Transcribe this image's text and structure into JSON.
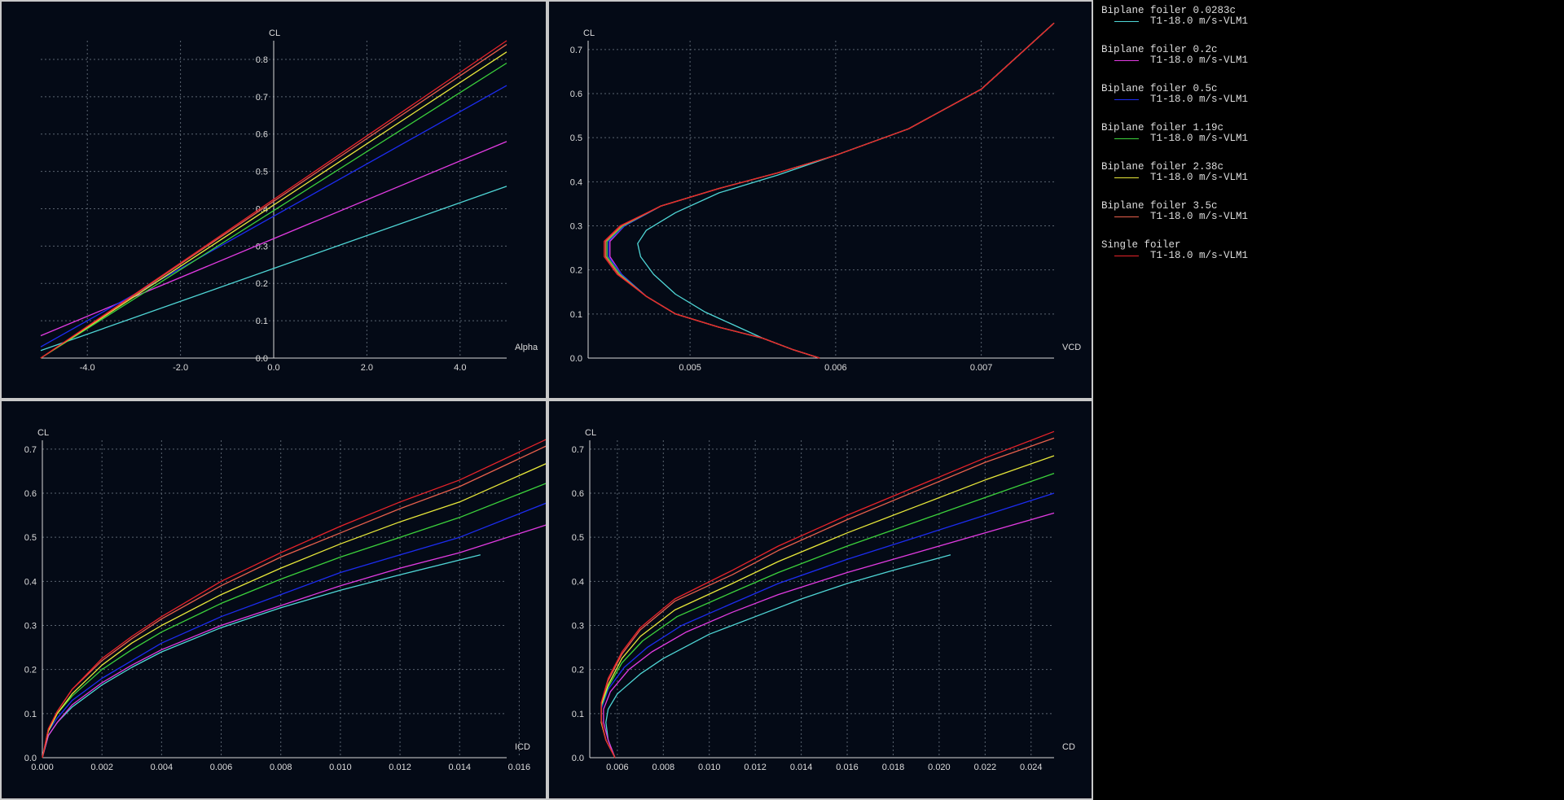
{
  "colors": {
    "background": "#040a16",
    "grid": "#5a6470",
    "axis": "#d8d8d8",
    "text": "#dcdcdc"
  },
  "legend": [
    {
      "label": "Biplane foiler 0.0283c",
      "run": "T1-18.0 m/s-VLM1",
      "color": "#4fd6d6"
    },
    {
      "label": "Biplane foiler 0.2c",
      "run": "T1-18.0 m/s-VLM1",
      "color": "#e23be2"
    },
    {
      "label": "Biplane foiler 0.5c",
      "run": "T1-18.0 m/s-VLM1",
      "color": "#1c2cf0"
    },
    {
      "label": "Biplane foiler 1.19c",
      "run": "T1-18.0 m/s-VLM1",
      "color": "#3cd23c"
    },
    {
      "label": "Biplane foiler 2.38c",
      "run": "T1-18.0 m/s-VLM1",
      "color": "#e8e83a"
    },
    {
      "label": "Biplane foiler 3.5c",
      "run": "T1-18.0 m/s-VLM1",
      "color": "#e8604c"
    },
    {
      "label": "Single foiler",
      "run": "T1-18.0 m/s-VLM1",
      "color": "#e8232a"
    }
  ],
  "chart_data": [
    {
      "type": "line",
      "xlabel": "Alpha",
      "ylabel": "CL",
      "xlim": [
        -5,
        5
      ],
      "ylim": [
        0,
        0.85
      ],
      "xticks": [
        -4.0,
        -2.0,
        0.0,
        2.0,
        4.0
      ],
      "xtick_labels": [
        "-4.0",
        "-2.0",
        "0.0",
        "2.0",
        "4.0"
      ],
      "yticks": [
        0.0,
        0.1,
        0.2,
        0.3,
        0.4,
        0.5,
        0.6,
        0.7,
        0.8
      ],
      "ytick_labels": [
        "0.0",
        "0.1",
        "0.2",
        "0.3",
        "0.4",
        "0.5",
        "0.6",
        "0.7",
        "0.8"
      ],
      "y_axis_at_x": 0,
      "grid": true,
      "series": [
        {
          "name": "Biplane foiler 0.0283c",
          "x": [
            -5,
            5
          ],
          "y": [
            0.02,
            0.46
          ]
        },
        {
          "name": "Biplane foiler 0.2c",
          "x": [
            -5,
            5
          ],
          "y": [
            0.06,
            0.58
          ]
        },
        {
          "name": "Biplane foiler 0.5c",
          "x": [
            -5,
            5
          ],
          "y": [
            0.03,
            0.73
          ]
        },
        {
          "name": "Biplane foiler 1.19c",
          "x": [
            -5,
            5
          ],
          "y": [
            0.0,
            0.79
          ]
        },
        {
          "name": "Biplane foiler 2.38c",
          "x": [
            -5,
            5
          ],
          "y": [
            0.0,
            0.82
          ]
        },
        {
          "name": "Biplane foiler 3.5c",
          "x": [
            -5,
            5
          ],
          "y": [
            0.0,
            0.84
          ]
        },
        {
          "name": "Single foiler",
          "x": [
            -5,
            5
          ],
          "y": [
            0.0,
            0.85
          ]
        }
      ]
    },
    {
      "type": "line",
      "xlabel": "VCD",
      "ylabel": "CL",
      "xlim": [
        0.0043,
        0.0075
      ],
      "ylim": [
        0,
        0.72
      ],
      "xticks": [
        0.005,
        0.006,
        0.007
      ],
      "xtick_labels": [
        "0.005",
        "0.006",
        "0.007"
      ],
      "yticks": [
        0.0,
        0.1,
        0.2,
        0.3,
        0.4,
        0.5,
        0.6,
        0.7
      ],
      "ytick_labels": [
        "0.0",
        "0.1",
        "0.2",
        "0.3",
        "0.4",
        "0.5",
        "0.6",
        "0.7"
      ],
      "grid": true,
      "series": [
        {
          "name": "Biplane foiler 0.0283c",
          "x": [
            0.00589,
            0.0057,
            0.0055,
            0.0053,
            0.0051,
            0.0049,
            0.00475,
            0.00466,
            0.00464,
            0.0047,
            0.0049,
            0.0052,
            0.0056,
            0.006,
            0.0065,
            0.007,
            0.0075
          ],
          "y": [
            0.0,
            0.02,
            0.045,
            0.075,
            0.105,
            0.145,
            0.19,
            0.23,
            0.26,
            0.29,
            0.33,
            0.375,
            0.415,
            0.46,
            0.52,
            0.61,
            0.76
          ]
        },
        {
          "name": "Biplane foiler 0.2c",
          "x": [
            0.00589,
            0.0057,
            0.0055,
            0.0052,
            0.0049,
            0.0047,
            0.00453,
            0.00445,
            0.00445,
            0.00455,
            0.0048,
            0.0052,
            0.0056,
            0.006,
            0.0065,
            0.007,
            0.0075
          ],
          "y": [
            0.0,
            0.02,
            0.045,
            0.07,
            0.1,
            0.14,
            0.19,
            0.23,
            0.265,
            0.3,
            0.345,
            0.385,
            0.42,
            0.46,
            0.52,
            0.61,
            0.76
          ]
        },
        {
          "name": "Biplane foiler 0.5c",
          "x": [
            0.00589,
            0.0057,
            0.0055,
            0.0052,
            0.0049,
            0.0047,
            0.00453,
            0.00444,
            0.00444,
            0.00455,
            0.0048,
            0.0052,
            0.0056,
            0.006,
            0.0065,
            0.007,
            0.0075
          ],
          "y": [
            0.0,
            0.02,
            0.045,
            0.07,
            0.1,
            0.14,
            0.19,
            0.23,
            0.265,
            0.3,
            0.345,
            0.385,
            0.42,
            0.46,
            0.52,
            0.61,
            0.76
          ]
        },
        {
          "name": "Biplane foiler 1.19c",
          "x": [
            0.00589,
            0.0057,
            0.0055,
            0.0052,
            0.0049,
            0.0047,
            0.00452,
            0.00443,
            0.00443,
            0.00454,
            0.0048,
            0.0052,
            0.0056,
            0.006,
            0.0065,
            0.007,
            0.0075
          ],
          "y": [
            0.0,
            0.02,
            0.045,
            0.07,
            0.1,
            0.14,
            0.19,
            0.23,
            0.265,
            0.3,
            0.345,
            0.385,
            0.42,
            0.46,
            0.52,
            0.61,
            0.76
          ]
        },
        {
          "name": "Biplane foiler 2.38c",
          "x": [
            0.00589,
            0.0057,
            0.0055,
            0.0052,
            0.0049,
            0.0047,
            0.00451,
            0.00442,
            0.00442,
            0.00453,
            0.0048,
            0.0052,
            0.0056,
            0.006,
            0.0065,
            0.007,
            0.0075
          ],
          "y": [
            0.0,
            0.02,
            0.045,
            0.07,
            0.1,
            0.14,
            0.19,
            0.23,
            0.265,
            0.3,
            0.345,
            0.385,
            0.42,
            0.46,
            0.52,
            0.61,
            0.76
          ]
        },
        {
          "name": "Biplane foiler 3.5c",
          "x": [
            0.00589,
            0.0057,
            0.0055,
            0.0052,
            0.0049,
            0.0047,
            0.00451,
            0.00442,
            0.00442,
            0.00453,
            0.0048,
            0.0052,
            0.0056,
            0.006,
            0.0065,
            0.007,
            0.0075
          ],
          "y": [
            0.0,
            0.02,
            0.045,
            0.07,
            0.1,
            0.14,
            0.19,
            0.23,
            0.265,
            0.3,
            0.345,
            0.385,
            0.42,
            0.46,
            0.52,
            0.61,
            0.76
          ]
        },
        {
          "name": "Single foiler",
          "x": [
            0.00589,
            0.0057,
            0.0055,
            0.0052,
            0.0049,
            0.0047,
            0.0045,
            0.00441,
            0.00441,
            0.00452,
            0.0048,
            0.0052,
            0.0056,
            0.006,
            0.0065,
            0.007,
            0.0075
          ],
          "y": [
            0.0,
            0.02,
            0.045,
            0.07,
            0.1,
            0.14,
            0.19,
            0.23,
            0.265,
            0.3,
            0.345,
            0.385,
            0.42,
            0.46,
            0.52,
            0.61,
            0.76
          ]
        }
      ]
    },
    {
      "type": "line",
      "xlabel": "ICD",
      "ylabel": "CL",
      "xlim": [
        0,
        0.017
      ],
      "ylim": [
        0,
        0.72
      ],
      "xticks": [
        0.0,
        0.002,
        0.004,
        0.006,
        0.008,
        0.01,
        0.012,
        0.014,
        0.016
      ],
      "xtick_labels": [
        "0.000",
        "0.002",
        "0.004",
        "0.006",
        "0.008",
        "0.010",
        "0.012",
        "0.014",
        "0.016"
      ],
      "yticks": [
        0.0,
        0.1,
        0.2,
        0.3,
        0.4,
        0.5,
        0.6,
        0.7
      ],
      "ytick_labels": [
        "0.0",
        "0.1",
        "0.2",
        "0.3",
        "0.4",
        "0.5",
        "0.6",
        "0.7"
      ],
      "grid": true,
      "series": [
        {
          "name": "Biplane foiler 0.0283c",
          "x": [
            0.0,
            0.0002,
            0.0005,
            0.001,
            0.002,
            0.003,
            0.004,
            0.006,
            0.008,
            0.01,
            0.012,
            0.0147
          ],
          "y": [
            0.0,
            0.05,
            0.08,
            0.115,
            0.165,
            0.205,
            0.24,
            0.295,
            0.34,
            0.38,
            0.415,
            0.46
          ]
        },
        {
          "name": "Biplane foiler 0.2c",
          "x": [
            0.0,
            0.0002,
            0.0005,
            0.001,
            0.002,
            0.003,
            0.004,
            0.006,
            0.008,
            0.01,
            0.012,
            0.014,
            0.017
          ],
          "y": [
            0.0,
            0.05,
            0.08,
            0.12,
            0.17,
            0.21,
            0.245,
            0.3,
            0.345,
            0.39,
            0.43,
            0.465,
            0.53
          ]
        },
        {
          "name": "Biplane foiler 0.5c",
          "x": [
            0.0,
            0.0002,
            0.0005,
            0.001,
            0.002,
            0.003,
            0.004,
            0.006,
            0.008,
            0.01,
            0.012,
            0.014,
            0.017
          ],
          "y": [
            0.0,
            0.06,
            0.09,
            0.13,
            0.18,
            0.22,
            0.26,
            0.32,
            0.37,
            0.42,
            0.46,
            0.5,
            0.58
          ]
        },
        {
          "name": "Biplane foiler 1.19c",
          "x": [
            0.0,
            0.0002,
            0.0005,
            0.001,
            0.002,
            0.003,
            0.004,
            0.006,
            0.008,
            0.01,
            0.012,
            0.014,
            0.017
          ],
          "y": [
            0.0,
            0.06,
            0.1,
            0.14,
            0.2,
            0.245,
            0.285,
            0.35,
            0.405,
            0.455,
            0.5,
            0.545,
            0.625
          ]
        },
        {
          "name": "Biplane foiler 2.38c",
          "x": [
            0.0,
            0.0002,
            0.0005,
            0.001,
            0.002,
            0.003,
            0.004,
            0.006,
            0.008,
            0.01,
            0.012,
            0.014,
            0.017
          ],
          "y": [
            0.0,
            0.06,
            0.1,
            0.145,
            0.21,
            0.26,
            0.3,
            0.37,
            0.43,
            0.485,
            0.535,
            0.58,
            0.67
          ]
        },
        {
          "name": "Biplane foiler 3.5c",
          "x": [
            0.0,
            0.0002,
            0.0005,
            0.001,
            0.002,
            0.003,
            0.004,
            0.006,
            0.008,
            0.01,
            0.012,
            0.014,
            0.017
          ],
          "y": [
            0.0,
            0.065,
            0.105,
            0.155,
            0.22,
            0.27,
            0.315,
            0.39,
            0.455,
            0.51,
            0.565,
            0.615,
            0.71
          ]
        },
        {
          "name": "Single foiler",
          "x": [
            0.0,
            0.0002,
            0.0005,
            0.001,
            0.002,
            0.003,
            0.004,
            0.006,
            0.008,
            0.01,
            0.012,
            0.014,
            0.017
          ],
          "y": [
            0.0,
            0.065,
            0.105,
            0.155,
            0.225,
            0.275,
            0.32,
            0.4,
            0.465,
            0.525,
            0.58,
            0.63,
            0.725
          ]
        }
      ]
    },
    {
      "type": "line",
      "xlabel": "CD",
      "ylabel": "CL",
      "xlim": [
        0.0048,
        0.025
      ],
      "ylim": [
        0,
        0.72
      ],
      "xticks": [
        0.006,
        0.008,
        0.01,
        0.012,
        0.014,
        0.016,
        0.018,
        0.02,
        0.022,
        0.024
      ],
      "xtick_labels": [
        "0.006",
        "0.008",
        "0.010",
        "0.012",
        "0.014",
        "0.016",
        "0.018",
        "0.020",
        "0.022",
        "0.024"
      ],
      "yticks": [
        0.0,
        0.1,
        0.2,
        0.3,
        0.4,
        0.5,
        0.6,
        0.7
      ],
      "ytick_labels": [
        "0.0",
        "0.1",
        "0.2",
        "0.3",
        "0.4",
        "0.5",
        "0.6",
        "0.7"
      ],
      "grid": true,
      "series": [
        {
          "name": "Biplane foiler 0.0283c",
          "x": [
            0.0059,
            0.0056,
            0.0055,
            0.0056,
            0.006,
            0.007,
            0.008,
            0.01,
            0.012,
            0.014,
            0.016,
            0.018,
            0.0205
          ],
          "y": [
            0.0,
            0.04,
            0.08,
            0.11,
            0.145,
            0.19,
            0.225,
            0.28,
            0.32,
            0.36,
            0.395,
            0.425,
            0.46
          ]
        },
        {
          "name": "Biplane foiler 0.2c",
          "x": [
            0.0059,
            0.0056,
            0.0054,
            0.0054,
            0.0057,
            0.0065,
            0.0075,
            0.009,
            0.011,
            0.013,
            0.016,
            0.019,
            0.022,
            0.025
          ],
          "y": [
            0.0,
            0.04,
            0.08,
            0.11,
            0.15,
            0.2,
            0.24,
            0.285,
            0.33,
            0.37,
            0.42,
            0.465,
            0.51,
            0.555
          ]
        },
        {
          "name": "Biplane foiler 0.5c",
          "x": [
            0.0059,
            0.0055,
            0.0053,
            0.0053,
            0.0056,
            0.0063,
            0.0073,
            0.0088,
            0.011,
            0.013,
            0.016,
            0.019,
            0.022,
            0.025
          ],
          "y": [
            0.0,
            0.04,
            0.08,
            0.11,
            0.155,
            0.205,
            0.25,
            0.3,
            0.35,
            0.395,
            0.45,
            0.5,
            0.55,
            0.6
          ]
        },
        {
          "name": "Biplane foiler 1.19c",
          "x": [
            0.0059,
            0.0055,
            0.0053,
            0.0053,
            0.0056,
            0.0062,
            0.0071,
            0.0086,
            0.011,
            0.013,
            0.016,
            0.019,
            0.022,
            0.025
          ],
          "y": [
            0.0,
            0.04,
            0.08,
            0.115,
            0.16,
            0.215,
            0.265,
            0.32,
            0.375,
            0.42,
            0.48,
            0.535,
            0.59,
            0.645
          ]
        },
        {
          "name": "Biplane foiler 2.38c",
          "x": [
            0.0059,
            0.0055,
            0.0053,
            0.0053,
            0.0056,
            0.0062,
            0.007,
            0.0085,
            0.011,
            0.013,
            0.016,
            0.019,
            0.022,
            0.025
          ],
          "y": [
            0.0,
            0.04,
            0.08,
            0.12,
            0.165,
            0.225,
            0.275,
            0.335,
            0.395,
            0.445,
            0.51,
            0.57,
            0.63,
            0.685
          ]
        },
        {
          "name": "Biplane foiler 3.5c",
          "x": [
            0.0059,
            0.0055,
            0.0053,
            0.0053,
            0.0056,
            0.0062,
            0.007,
            0.0085,
            0.011,
            0.013,
            0.016,
            0.019,
            0.022,
            0.025
          ],
          "y": [
            0.0,
            0.04,
            0.085,
            0.125,
            0.175,
            0.235,
            0.29,
            0.355,
            0.415,
            0.47,
            0.54,
            0.605,
            0.67,
            0.725
          ]
        },
        {
          "name": "Single foiler",
          "x": [
            0.0059,
            0.0055,
            0.0053,
            0.0053,
            0.0056,
            0.0062,
            0.007,
            0.0085,
            0.011,
            0.013,
            0.016,
            0.019,
            0.022,
            0.025
          ],
          "y": [
            0.0,
            0.04,
            0.085,
            0.125,
            0.18,
            0.24,
            0.295,
            0.36,
            0.425,
            0.48,
            0.55,
            0.615,
            0.68,
            0.74
          ]
        }
      ]
    }
  ]
}
